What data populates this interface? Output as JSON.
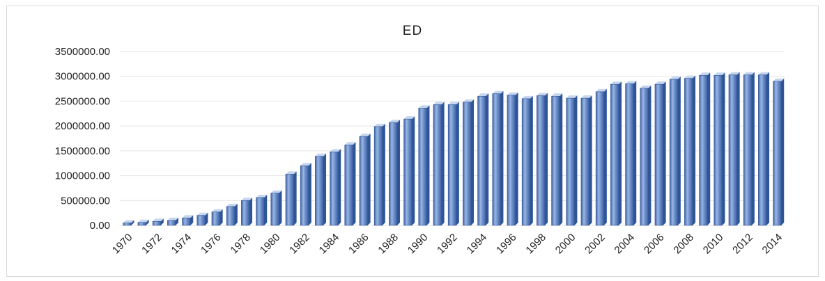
{
  "chart_data": {
    "type": "bar",
    "title": "ED",
    "xlabel": "",
    "ylabel": "",
    "ylim": [
      0,
      3500000
    ],
    "yticks": [
      "0.00",
      "500000.00",
      "1000000.00",
      "1500000.00",
      "2000000.00",
      "2500000.00",
      "3000000.00",
      "3500000.00"
    ],
    "x_tick_labels": [
      "1970",
      "1972",
      "1974",
      "1976",
      "1978",
      "1980",
      "1982",
      "1984",
      "1986",
      "1988",
      "1990",
      "1992",
      "1994",
      "1996",
      "1998",
      "2000",
      "2002",
      "2004",
      "2006",
      "2008",
      "2010",
      "2012",
      "2014"
    ],
    "categories": [
      "1970",
      "1971",
      "1972",
      "1973",
      "1974",
      "1975",
      "1976",
      "1977",
      "1978",
      "1979",
      "1980",
      "1981",
      "1982",
      "1983",
      "1984",
      "1985",
      "1986",
      "1987",
      "1988",
      "1989",
      "1990",
      "1991",
      "1992",
      "1993",
      "1994",
      "1995",
      "1996",
      "1997",
      "1998",
      "1999",
      "2000",
      "2001",
      "2002",
      "2003",
      "2004",
      "2005",
      "2006",
      "2007",
      "2008",
      "2009",
      "2010",
      "2011",
      "2012",
      "2013",
      "2014"
    ],
    "values": [
      50000,
      60000,
      80000,
      100000,
      150000,
      200000,
      270000,
      380000,
      500000,
      560000,
      650000,
      1030000,
      1200000,
      1390000,
      1480000,
      1620000,
      1790000,
      1990000,
      2070000,
      2140000,
      2360000,
      2430000,
      2430000,
      2480000,
      2600000,
      2650000,
      2620000,
      2550000,
      2610000,
      2600000,
      2560000,
      2560000,
      2690000,
      2840000,
      2850000,
      2760000,
      2840000,
      2940000,
      2960000,
      3020000,
      3020000,
      3030000,
      3030000,
      3030000,
      2900000
    ],
    "grid": true,
    "legend": "none",
    "colors": {
      "bar_face": "#5b7fbe",
      "bar_light": "#9ab6e3",
      "bar_side": "#2f5597",
      "bar_top": "#c6d6ef",
      "grid": "#e4e4e4"
    }
  }
}
